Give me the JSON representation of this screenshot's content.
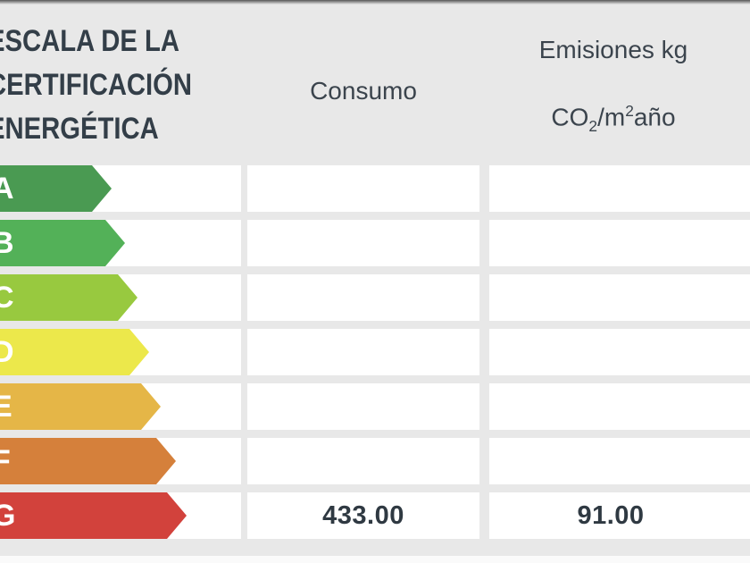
{
  "title": {
    "lines": [
      "ESCALA DE LA",
      "CERTIFICACIÓN",
      "ENERGÉTICA"
    ]
  },
  "columns": {
    "consumo": {
      "label": "Consumo"
    },
    "emisiones": {
      "line1": "Emisiones kg",
      "formula": {
        "prefix": "CO",
        "sub": "2",
        "mid": "/m",
        "sup": "2",
        "suffix": "año"
      }
    }
  },
  "scale": {
    "row_top_start": 185,
    "row_stride": 61,
    "rows": [
      {
        "letter": "A",
        "color": "#4a9a52",
        "arrow_width": 125,
        "consumo": "",
        "emisiones": ""
      },
      {
        "letter": "B",
        "color": "#53b158",
        "arrow_width": 140,
        "consumo": "",
        "emisiones": ""
      },
      {
        "letter": "C",
        "color": "#98c93f",
        "arrow_width": 154,
        "consumo": "",
        "emisiones": ""
      },
      {
        "letter": "D",
        "color": "#ece84b",
        "arrow_width": 167,
        "consumo": "",
        "emisiones": ""
      },
      {
        "letter": "E",
        "color": "#e5b647",
        "arrow_width": 180,
        "consumo": "",
        "emisiones": ""
      },
      {
        "letter": "F",
        "color": "#d5803b",
        "arrow_width": 197,
        "consumo": "",
        "emisiones": ""
      },
      {
        "letter": "G",
        "color": "#d2423c",
        "arrow_width": 209,
        "consumo": "433.00",
        "emisiones": "91.00"
      }
    ]
  },
  "chart_data": {
    "type": "table",
    "title": "ESCALA DE LA CERTIFICACIÓN ENERGÉTICA",
    "columns": [
      "Escala de la certificación energética",
      "Consumo",
      "Emisiones kg CO2/m2año"
    ],
    "ratings": [
      "A",
      "B",
      "C",
      "D",
      "E",
      "F",
      "G"
    ],
    "rating_colors": [
      "#4a9a52",
      "#53b158",
      "#98c93f",
      "#ece84b",
      "#e5b647",
      "#d5803b",
      "#d2423c"
    ],
    "assigned_rating": "G",
    "values": {
      "rating": "G",
      "consumo": 433.0,
      "emisiones_kg_co2_m2_ano": 91.0
    },
    "layout": {
      "scale_direction": "A-best-to-G-worst",
      "arrow_lengths_increase_downward": true
    }
  },
  "theme": {
    "background": "#e8e8e8",
    "cell_background": "#ffffff",
    "title_color": "#333e48",
    "header_color": "#3b444d",
    "value_color": "#2f3942"
  }
}
